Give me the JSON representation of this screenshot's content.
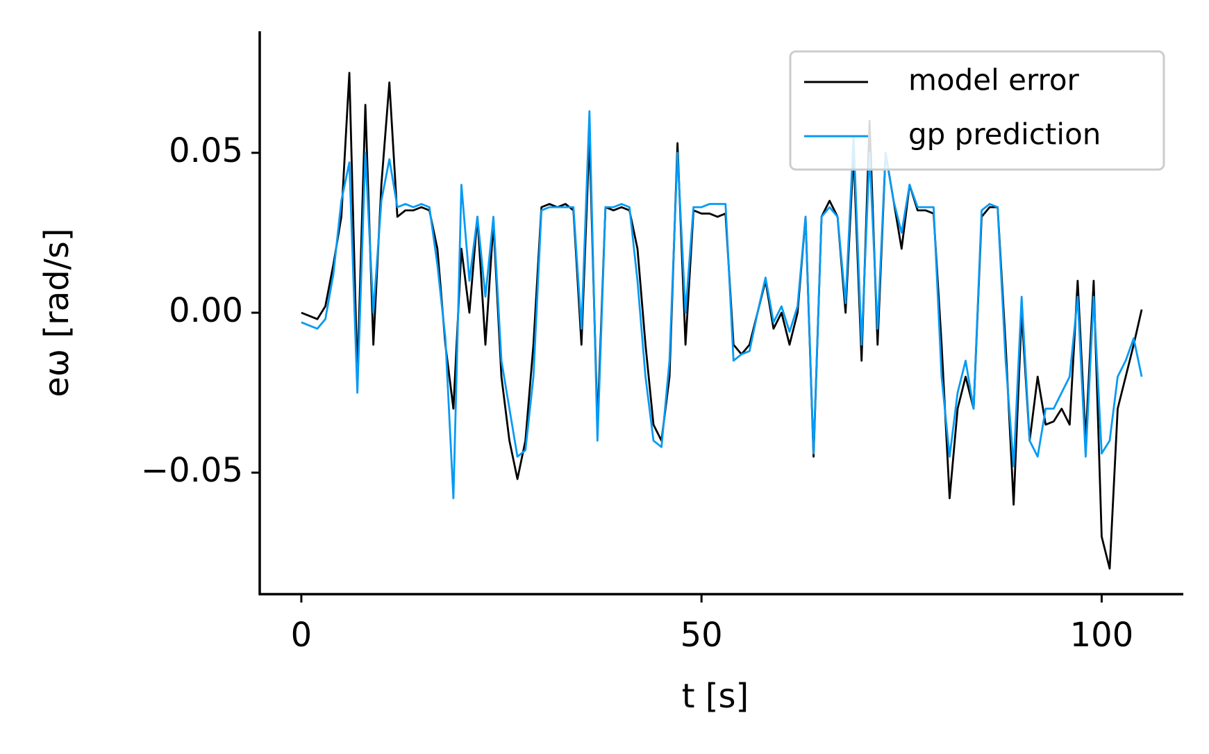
{
  "chart_data": {
    "type": "line",
    "x_label": "t [s]",
    "y_label": "eω [rad/s]",
    "x": [
      0,
      1,
      2,
      3,
      4,
      5,
      6,
      7,
      8,
      9,
      10,
      11,
      12,
      13,
      14,
      15,
      16,
      17,
      18,
      19,
      20,
      21,
      22,
      23,
      24,
      25,
      26,
      27,
      28,
      29,
      30,
      31,
      32,
      33,
      34,
      35,
      36,
      37,
      38,
      39,
      40,
      41,
      42,
      43,
      44,
      45,
      46,
      47,
      48,
      49,
      50,
      51,
      52,
      53,
      54,
      55,
      56,
      57,
      58,
      59,
      60,
      61,
      62,
      63,
      64,
      65,
      66,
      67,
      68,
      69,
      70,
      71,
      72,
      73,
      74,
      75,
      76,
      77,
      78,
      79,
      80,
      81,
      82,
      83,
      84,
      85,
      86,
      87,
      88,
      89,
      90,
      91,
      92,
      93,
      94,
      95,
      96,
      97,
      98,
      99,
      100,
      101,
      102,
      103,
      104,
      105
    ],
    "series": [
      {
        "name": "model error",
        "color": "#000000",
        "values": [
          0.0,
          -0.001,
          -0.002,
          0.002,
          0.015,
          0.03,
          0.075,
          -0.02,
          0.065,
          -0.01,
          0.04,
          0.072,
          0.03,
          0.032,
          0.032,
          0.033,
          0.032,
          0.02,
          -0.01,
          -0.03,
          0.02,
          0.0,
          0.03,
          -0.01,
          0.028,
          -0.02,
          -0.04,
          -0.052,
          -0.04,
          -0.01,
          0.033,
          0.034,
          0.033,
          0.034,
          0.032,
          -0.01,
          0.055,
          -0.035,
          0.033,
          0.032,
          0.033,
          0.032,
          0.02,
          -0.01,
          -0.035,
          -0.04,
          -0.02,
          0.053,
          -0.01,
          0.032,
          0.031,
          0.031,
          0.03,
          0.031,
          -0.01,
          -0.013,
          -0.01,
          0.0,
          0.01,
          -0.005,
          0.0,
          -0.01,
          0.0,
          0.03,
          -0.045,
          0.03,
          0.035,
          0.03,
          0.0,
          0.05,
          -0.015,
          0.06,
          -0.01,
          0.05,
          0.035,
          0.02,
          0.04,
          0.032,
          0.032,
          0.031,
          -0.01,
          -0.058,
          -0.03,
          -0.02,
          -0.03,
          0.03,
          0.033,
          0.033,
          -0.01,
          -0.06,
          0.0,
          -0.04,
          -0.02,
          -0.035,
          -0.034,
          -0.03,
          -0.035,
          0.01,
          -0.04,
          0.01,
          -0.07,
          -0.08,
          -0.03,
          -0.02,
          -0.01,
          0.001
        ]
      },
      {
        "name": "gp prediction",
        "color": "#069af3",
        "values": [
          -0.003,
          -0.004,
          -0.005,
          -0.002,
          0.012,
          0.035,
          0.047,
          -0.025,
          0.05,
          0.0,
          0.035,
          0.048,
          0.033,
          0.034,
          0.033,
          0.034,
          0.033,
          0.015,
          -0.008,
          -0.058,
          0.04,
          0.01,
          0.03,
          0.005,
          0.03,
          -0.015,
          -0.03,
          -0.045,
          -0.043,
          -0.02,
          0.032,
          0.033,
          0.033,
          0.033,
          0.033,
          -0.005,
          0.063,
          -0.04,
          0.033,
          0.033,
          0.034,
          0.033,
          0.01,
          -0.02,
          -0.04,
          -0.042,
          -0.015,
          0.05,
          0.0,
          0.033,
          0.033,
          0.034,
          0.034,
          0.034,
          -0.015,
          -0.013,
          -0.012,
          0.0,
          0.011,
          -0.003,
          0.002,
          -0.006,
          0.002,
          0.03,
          -0.044,
          0.03,
          0.033,
          0.03,
          0.003,
          0.055,
          -0.01,
          0.05,
          -0.005,
          0.05,
          0.035,
          0.025,
          0.04,
          0.033,
          0.033,
          0.033,
          -0.02,
          -0.045,
          -0.025,
          -0.015,
          -0.03,
          0.032,
          0.034,
          0.033,
          -0.015,
          -0.048,
          0.005,
          -0.04,
          -0.045,
          -0.03,
          -0.03,
          -0.025,
          -0.02,
          0.005,
          -0.045,
          0.005,
          -0.044,
          -0.04,
          -0.02,
          -0.015,
          -0.008,
          -0.02
        ]
      }
    ],
    "xlim": [
      -5.2,
      110.2
    ],
    "ylim": [
      -0.088,
      0.088
    ],
    "xticks": [
      0,
      50,
      100
    ],
    "yticks": [
      {
        "value": -0.05,
        "label": "−0.05"
      },
      {
        "value": 0,
        "label": "0.00"
      },
      {
        "value": 0.05,
        "label": "0.05"
      }
    ],
    "grid": false,
    "legend": "upper right"
  }
}
